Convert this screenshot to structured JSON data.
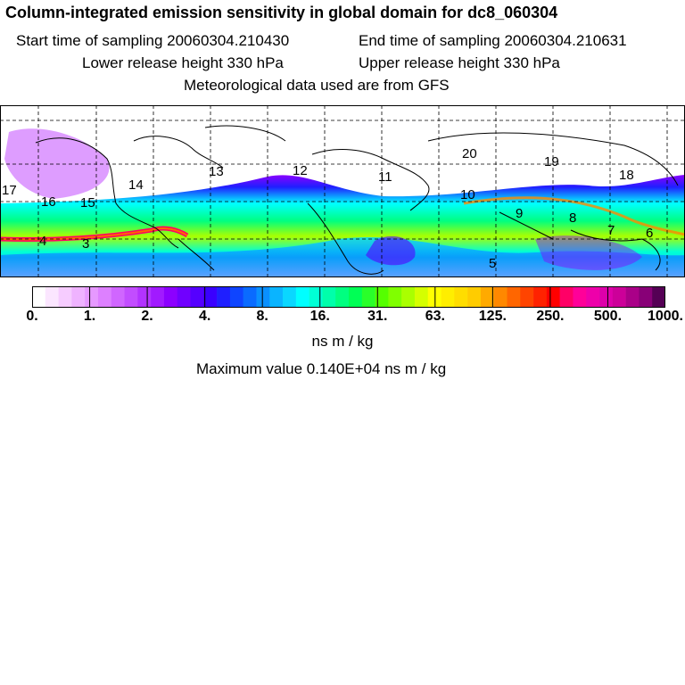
{
  "header": {
    "title": "Column-integrated emission sensitivity in global domain for dc8_060304",
    "start_time": "Start time of sampling 20060304.210430",
    "end_time": "End time of sampling 20060304.210631",
    "lower_height": "Lower release height  330 hPa",
    "upper_height": "Upper release height  330 hPa",
    "met_data": "Meteorological data used are from GFS"
  },
  "map": {
    "time_labels": [
      "17",
      "16",
      "15",
      "14",
      "13",
      "12",
      "11",
      "10",
      "9",
      "8",
      "7",
      "6",
      "5",
      "4",
      "3",
      "20",
      "19",
      "18"
    ]
  },
  "colorbar": {
    "tick_labels": [
      "0.",
      "1.",
      "2.",
      "4.",
      "8.",
      "16.",
      "31.",
      "63.",
      "125.",
      "250.",
      "500.",
      "1000."
    ],
    "colors": [
      "#ffffff",
      "#fbe6ff",
      "#f6ccff",
      "#efb3ff",
      "#e699ff",
      "#dd80ff",
      "#d066ff",
      "#c24dff",
      "#b233ff",
      "#a11aff",
      "#8c00ff",
      "#7000ff",
      "#5500ff",
      "#3a00ff",
      "#1f1fff",
      "#0f45ff",
      "#0a6bff",
      "#0a90ff",
      "#0ab4ff",
      "#0ad7ff",
      "#00ffff",
      "#00ffd5",
      "#00ffaa",
      "#00ff80",
      "#00ff55",
      "#2aff2a",
      "#55ff00",
      "#80ff00",
      "#aaff00",
      "#d5ff00",
      "#ffff00",
      "#ffee00",
      "#ffdd00",
      "#ffcc00",
      "#ffaa00",
      "#ff8800",
      "#ff6600",
      "#ff4400",
      "#ff2200",
      "#ff0000",
      "#ff0066",
      "#ff0099",
      "#ee00aa",
      "#dd00aa",
      "#cc0099",
      "#aa0088",
      "#880077",
      "#550055"
    ]
  },
  "units": "ns m / kg",
  "max_value": "Maximum value  0.140E+04 ns m / kg"
}
